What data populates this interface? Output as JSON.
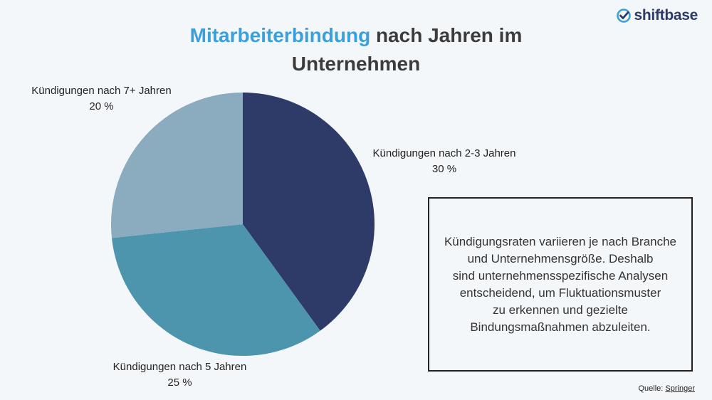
{
  "brand": {
    "name": "shiftbase",
    "icon": "check-circle-icon",
    "color": "#2b3a66",
    "accent": "#3b9fdc"
  },
  "title": {
    "highlight": "Mitarbeiterbindung",
    "line1_rest": "nach Jahren im",
    "line2": "Unternehmen"
  },
  "chart_data": {
    "type": "pie",
    "title": "Mitarbeiterbindung nach Jahren im Unternehmen",
    "slices": [
      {
        "label": "Kündigungen nach 2-3 Jahren",
        "value": 30,
        "value_label": "30 %",
        "color": "#2e3a68"
      },
      {
        "label": "Kündigungen nach 5 Jahren",
        "value": 25,
        "value_label": "25 %",
        "color": "#4d94ad"
      },
      {
        "label": "Kündigungen nach 7+ Jahren",
        "value": 20,
        "value_label": "20 %",
        "color": "#8babbe"
      }
    ]
  },
  "note": {
    "lines": [
      "Kündigungsraten variieren je nach Branche",
      "und Unternehmensgröße. Deshalb",
      "sind unternehmensspezifische Analysen",
      "entscheidend, um Fluktuationsmuster",
      "zu erkennen und gezielte",
      "Bindungsmaßnahmen abzuleiten."
    ]
  },
  "source": {
    "label": "Quelle:",
    "link": "Springer"
  }
}
